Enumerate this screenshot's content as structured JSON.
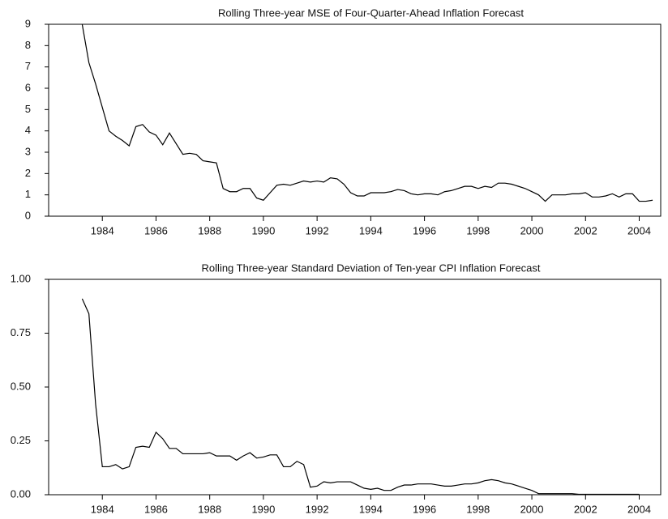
{
  "chart_data": [
    {
      "type": "line",
      "title": "Rolling Three-year MSE of Four-Quarter-Ahead Inflation Forecast",
      "color": "#000000",
      "x": [
        1983.25,
        1983.5,
        1983.75,
        1984,
        1984.25,
        1984.5,
        1984.75,
        1985,
        1985.25,
        1985.5,
        1985.75,
        1986,
        1986.25,
        1986.5,
        1986.75,
        1987,
        1987.25,
        1987.5,
        1987.75,
        1988,
        1988.25,
        1988.5,
        1988.75,
        1989,
        1989.25,
        1989.5,
        1989.75,
        1990,
        1990.25,
        1990.5,
        1990.75,
        1991,
        1991.25,
        1991.5,
        1991.75,
        1992,
        1992.25,
        1992.5,
        1992.75,
        1993,
        1993.25,
        1993.5,
        1993.75,
        1994,
        1994.25,
        1994.5,
        1994.75,
        1995,
        1995.25,
        1995.5,
        1995.75,
        1996,
        1996.25,
        1996.5,
        1996.75,
        1997,
        1997.25,
        1997.5,
        1997.75,
        1998,
        1998.25,
        1998.5,
        1998.75,
        1999,
        1999.25,
        1999.5,
        1999.75,
        2000,
        2000.25,
        2000.5,
        2000.75,
        2001,
        2001.25,
        2001.5,
        2001.75,
        2002,
        2002.25,
        2002.5,
        2002.75,
        2003,
        2003.25,
        2003.5,
        2003.75,
        2004,
        2004.25,
        2004.5
      ],
      "values": [
        9,
        7.2,
        6.2,
        5.1,
        4.0,
        3.75,
        3.55,
        3.3,
        4.2,
        4.3,
        3.95,
        3.8,
        3.35,
        3.9,
        3.4,
        2.9,
        2.95,
        2.9,
        2.6,
        2.55,
        2.5,
        1.3,
        1.15,
        1.15,
        1.3,
        1.3,
        0.85,
        0.75,
        1.1,
        1.45,
        1.5,
        1.45,
        1.55,
        1.65,
        1.6,
        1.65,
        1.6,
        1.8,
        1.75,
        1.5,
        1.1,
        0.95,
        0.95,
        1.1,
        1.1,
        1.1,
        1.15,
        1.25,
        1.2,
        1.05,
        1.0,
        1.05,
        1.05,
        1.0,
        1.15,
        1.2,
        1.3,
        1.4,
        1.4,
        1.3,
        1.4,
        1.35,
        1.55,
        1.55,
        1.5,
        1.4,
        1.3,
        1.15,
        1.0,
        0.7,
        1.0,
        1.0,
        1.0,
        1.05,
        1.05,
        1.1,
        0.9,
        0.9,
        0.95,
        1.05,
        0.9,
        1.05,
        1.05,
        0.7,
        0.7,
        0.75
      ],
      "xlim": [
        1982,
        2004.8
      ],
      "xticks": [
        1984,
        1986,
        1988,
        1990,
        1992,
        1994,
        1996,
        1998,
        2000,
        2002,
        2004
      ],
      "ylim": [
        0,
        9
      ],
      "yticks": [
        0,
        1,
        2,
        3,
        4,
        5,
        6,
        7,
        8,
        9
      ],
      "grid": false
    },
    {
      "type": "line",
      "title": "Rolling Three-year Standard Deviation of Ten-year CPI Inflation Forecast",
      "color": "#000000",
      "x": [
        1983.25,
        1983.5,
        1983.75,
        1984,
        1984.25,
        1984.5,
        1984.75,
        1985,
        1985.25,
        1985.5,
        1985.75,
        1986,
        1986.25,
        1986.5,
        1986.75,
        1987,
        1987.25,
        1987.5,
        1987.75,
        1988,
        1988.25,
        1988.5,
        1988.75,
        1989,
        1989.25,
        1989.5,
        1989.75,
        1990,
        1990.25,
        1990.5,
        1990.75,
        1991,
        1991.25,
        1991.5,
        1991.75,
        1992,
        1992.25,
        1992.5,
        1992.75,
        1993,
        1993.25,
        1993.5,
        1993.75,
        1994,
        1994.25,
        1994.5,
        1994.75,
        1995,
        1995.25,
        1995.5,
        1995.75,
        1996,
        1996.25,
        1996.5,
        1996.75,
        1997,
        1997.25,
        1997.5,
        1997.75,
        1998,
        1998.25,
        1998.5,
        1998.75,
        1999,
        1999.25,
        1999.5,
        1999.75,
        2000,
        2000.25,
        2000.5,
        2000.75,
        2001,
        2001.25,
        2001.5,
        2001.75,
        2002,
        2002.25,
        2002.5,
        2002.75,
        2003,
        2003.25,
        2003.5,
        2003.75,
        2004
      ],
      "values": [
        0.91,
        0.84,
        0.42,
        0.13,
        0.13,
        0.14,
        0.12,
        0.13,
        0.22,
        0.225,
        0.22,
        0.29,
        0.26,
        0.215,
        0.215,
        0.19,
        0.19,
        0.19,
        0.19,
        0.195,
        0.18,
        0.18,
        0.18,
        0.16,
        0.18,
        0.195,
        0.17,
        0.175,
        0.185,
        0.185,
        0.13,
        0.13,
        0.155,
        0.14,
        0.035,
        0.04,
        0.06,
        0.055,
        0.06,
        0.06,
        0.06,
        0.045,
        0.03,
        0.025,
        0.03,
        0.02,
        0.02,
        0.035,
        0.045,
        0.045,
        0.05,
        0.05,
        0.05,
        0.045,
        0.04,
        0.04,
        0.045,
        0.05,
        0.05,
        0.055,
        0.065,
        0.07,
        0.065,
        0.055,
        0.05,
        0.04,
        0.03,
        0.02,
        0.005,
        0.005,
        0.005,
        0.005,
        0.005,
        0.005,
        0.002,
        0.002,
        0.002,
        0.002,
        0.002,
        0.002,
        0.002,
        0.002,
        0.002,
        0.002
      ],
      "xlim": [
        1982,
        2004.8
      ],
      "xticks": [
        1984,
        1986,
        1988,
        1990,
        1992,
        1994,
        1996,
        1998,
        2000,
        2002,
        2004
      ],
      "ylim": [
        0,
        1
      ],
      "yticks": [
        {
          "value": 0,
          "label": "0.00"
        },
        0.25,
        {
          "value": 0.5,
          "label": "0.50"
        },
        0.75,
        {
          "value": 1,
          "label": "1.00"
        }
      ],
      "grid": false
    }
  ]
}
